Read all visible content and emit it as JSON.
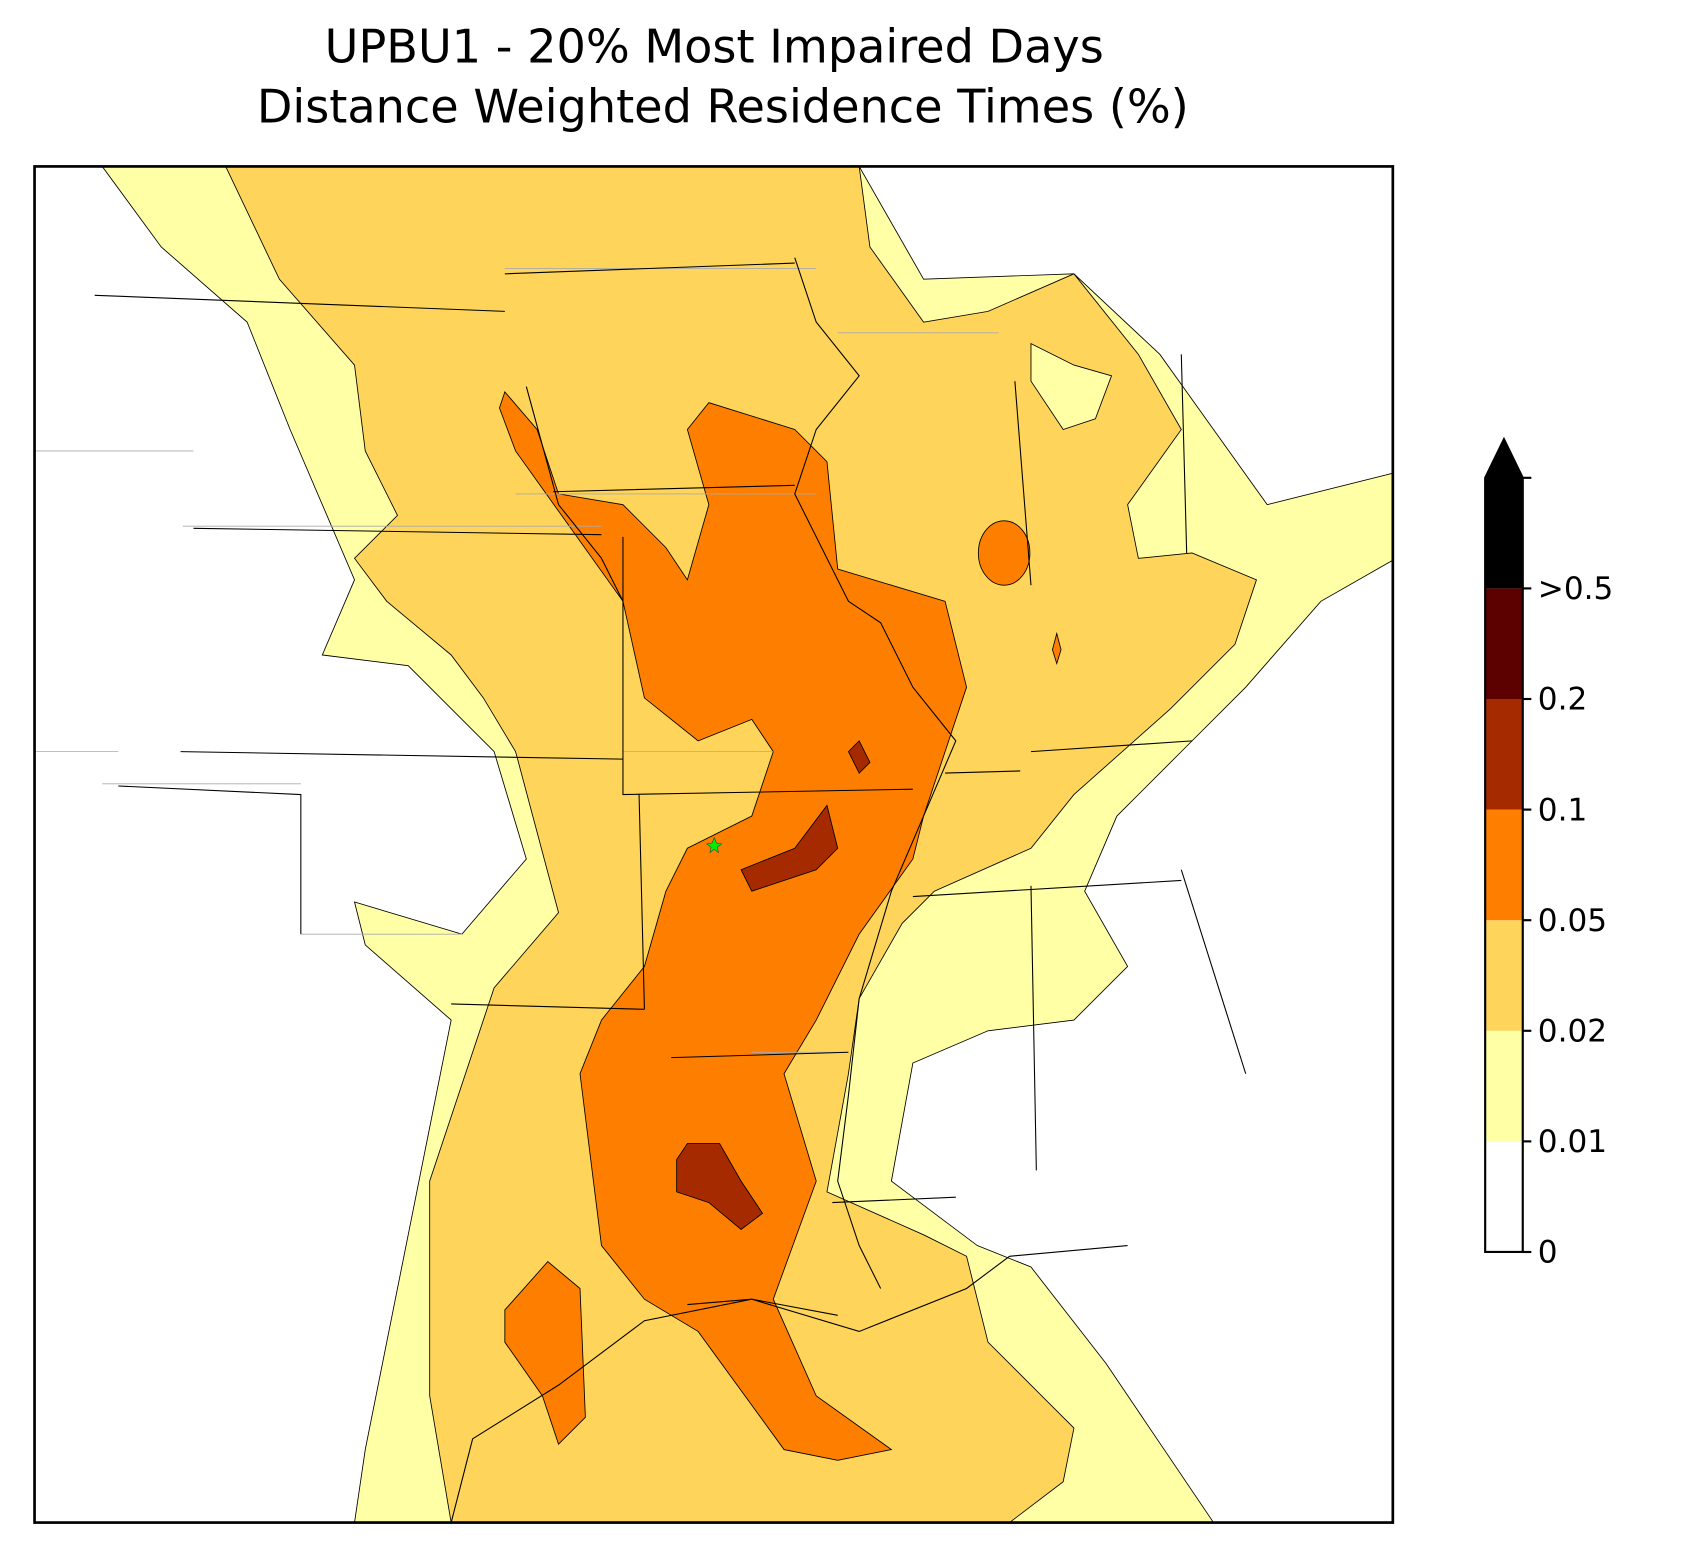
{
  "chart_data": {
    "type": "contour-map",
    "title": [
      "UPBU1 - 20% Most Impaired Days",
      "Distance Weighted Residence Times (%)"
    ],
    "colorbar": {
      "levels": [
        0,
        0.01,
        0.02,
        0.05,
        0.1,
        0.2,
        {
          "value": 0.5,
          "label": ">0.5"
        }
      ],
      "colors": [
        "#ffffff",
        "#ffffa6",
        "#fed55a",
        "#fe7f00",
        "#a52a00",
        "#5c0000"
      ],
      "extend_color": "#000000"
    },
    "site_color": "#00ee00"
  }
}
